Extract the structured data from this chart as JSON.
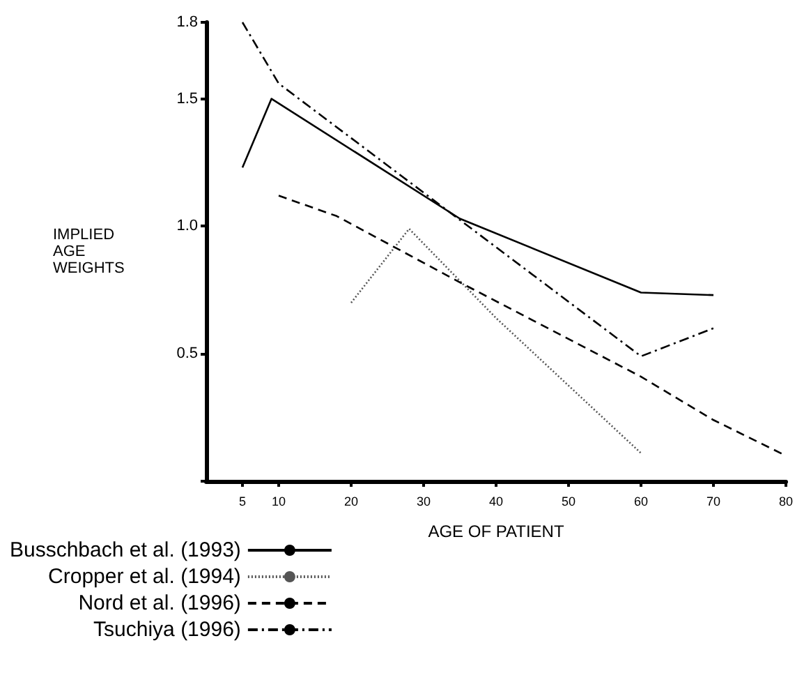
{
  "chart_data": {
    "type": "line",
    "xlabel": "AGE OF PATIENT",
    "ylabel": "IMPLIED AGE WEIGHTS",
    "xlim": [
      0,
      80
    ],
    "xticks": [
      5,
      10,
      20,
      30,
      40,
      50,
      60,
      70,
      80
    ],
    "ylim": [
      0,
      1.8
    ],
    "yticks": [
      {
        "value": 0,
        "label": null
      },
      0.5,
      {
        "value": 1,
        "label": "1.0"
      },
      1.5,
      1.8
    ],
    "grid": false,
    "legend": "bottom left",
    "marker": "none",
    "series": [
      {
        "name": "Busschbach et al. (1993)",
        "color": "#000000",
        "line_style": "solid",
        "x": [
          5,
          9,
          35,
          60,
          70
        ],
        "values": [
          1.23,
          1.5,
          1.03,
          0.74,
          0.73
        ]
      },
      {
        "name": "Cropper et al. (1994)",
        "color": "#555555",
        "line_style": "dotted",
        "x": [
          20,
          28,
          40,
          60
        ],
        "values": [
          0.7,
          0.99,
          0.64,
          0.11
        ]
      },
      {
        "name": "Nord et al. (1996)",
        "color": "#000000",
        "line_style": "dashed",
        "x": [
          10,
          18,
          35,
          60,
          70,
          80
        ],
        "values": [
          1.12,
          1.04,
          0.78,
          0.41,
          0.24,
          0.1
        ]
      },
      {
        "name": "Tsuchiya (1996)",
        "color": "#000000",
        "line_style": "dashdot",
        "x": [
          5,
          10,
          60,
          70
        ],
        "values": [
          1.8,
          1.56,
          0.49,
          0.6
        ]
      }
    ]
  }
}
